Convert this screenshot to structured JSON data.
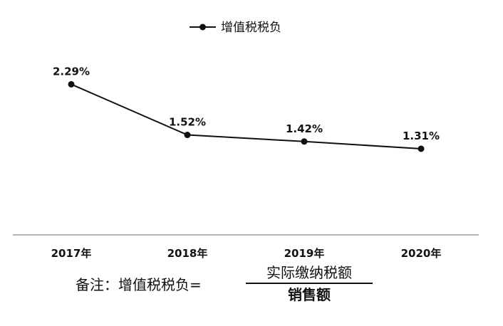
{
  "chart_data": {
    "type": "line",
    "categories": [
      "2017年",
      "2018年",
      "2019年",
      "2020年"
    ],
    "series": [
      {
        "name": "增值税税负",
        "values": [
          2.29,
          1.52,
          1.42,
          1.31
        ],
        "data_labels": [
          "2.29%",
          "1.52%",
          "1.42%",
          "1.31%"
        ]
      }
    ],
    "title": "",
    "xlabel": "",
    "ylabel": "",
    "ylim": [
      0,
      2.5
    ],
    "grid": false,
    "legend": "top-center",
    "line_color": "#111111"
  },
  "note": {
    "prefix": "备注：增值税税负=",
    "numerator": "实际缴纳税额",
    "denominator": "销售额"
  }
}
